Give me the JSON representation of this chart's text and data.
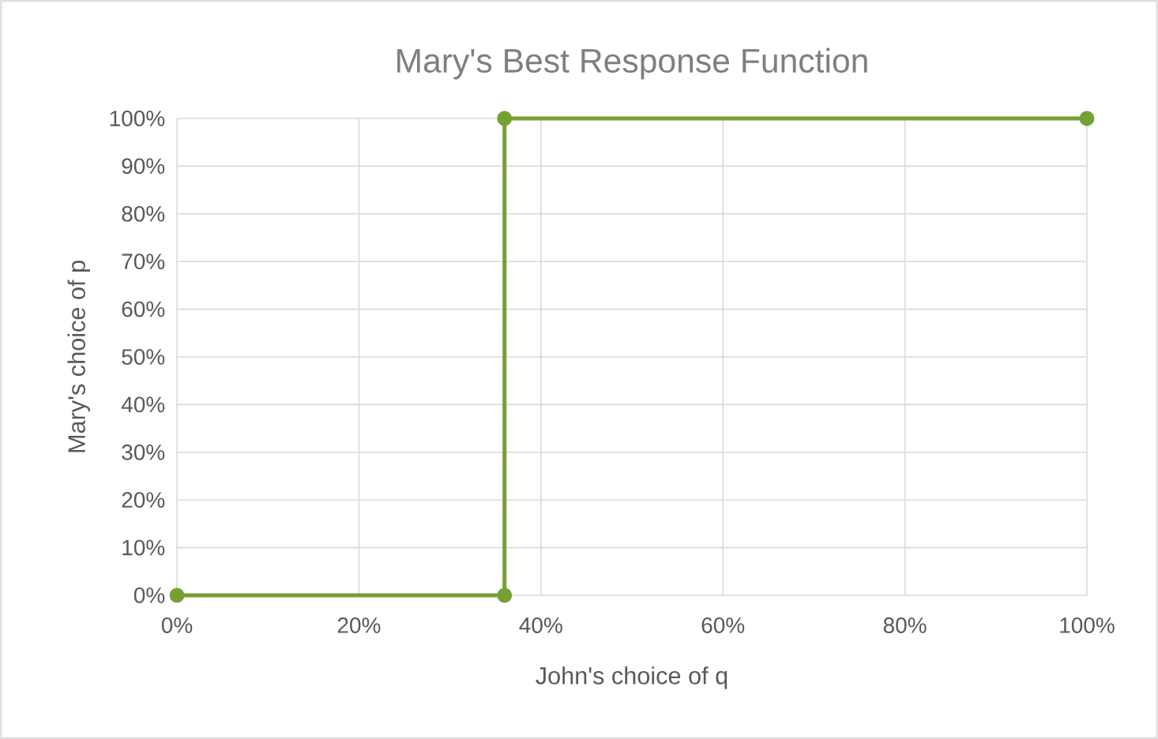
{
  "chart_data": {
    "type": "scatter",
    "title": "Mary's Best Response Function",
    "xlabel": "John's choice of q",
    "ylabel": "Mary's choice of p",
    "x": [
      0,
      36,
      36,
      100
    ],
    "series": [
      {
        "color": "#74a034",
        "values": [
          0,
          0,
          100,
          100
        ]
      }
    ],
    "marker": "circle",
    "line_style": "solid",
    "grid": true,
    "xlim": [
      0,
      100
    ],
    "ylim": [
      0,
      100
    ],
    "xticks": [
      {
        "value": 0,
        "label": "0%"
      },
      {
        "value": 20,
        "label": "20%"
      },
      {
        "value": 40,
        "label": "40%"
      },
      {
        "value": 60,
        "label": "60%"
      },
      {
        "value": 80,
        "label": "80%"
      },
      {
        "value": 100,
        "label": "100%"
      }
    ],
    "yticks": [
      {
        "value": 0,
        "label": "0%"
      },
      {
        "value": 10,
        "label": "10%"
      },
      {
        "value": 20,
        "label": "20%"
      },
      {
        "value": 30,
        "label": "30%"
      },
      {
        "value": 40,
        "label": "40%"
      },
      {
        "value": 50,
        "label": "50%"
      },
      {
        "value": 60,
        "label": "60%"
      },
      {
        "value": 70,
        "label": "70%"
      },
      {
        "value": 80,
        "label": "80%"
      },
      {
        "value": 90,
        "label": "90%"
      },
      {
        "value": 100,
        "label": "100%"
      }
    ]
  }
}
